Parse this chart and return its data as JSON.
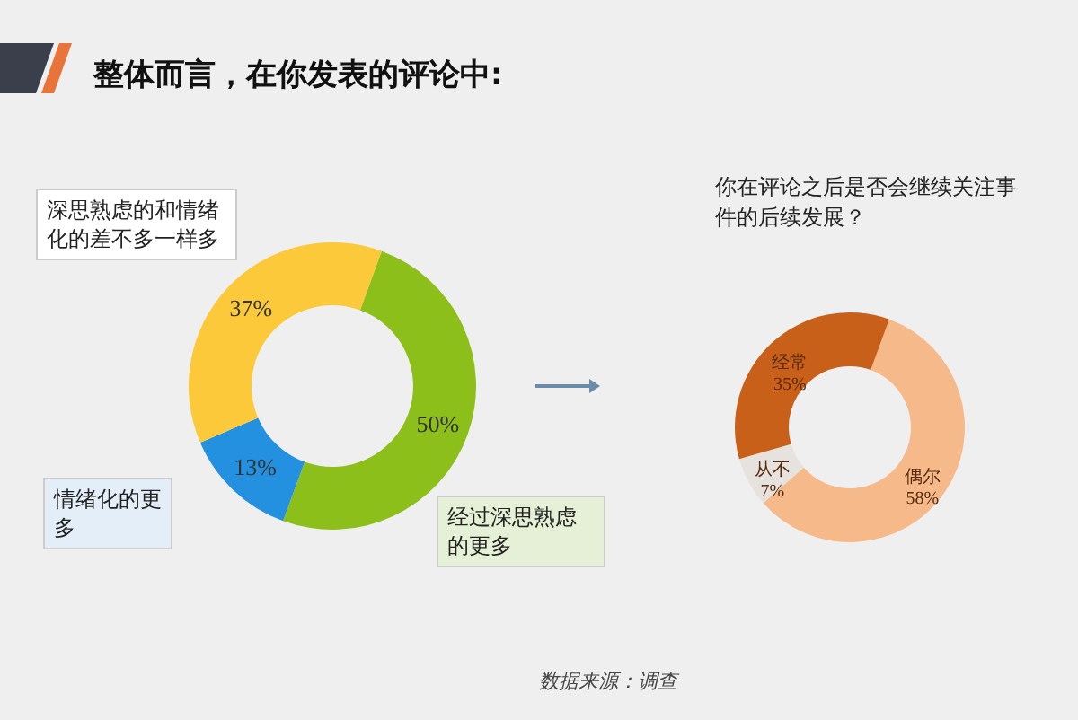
{
  "chart_data": [
    {
      "type": "donut",
      "title": "整体而言，在你发表的评论中:",
      "categories": [
        "经过深思熟虑的更多",
        "情绪化的更多",
        "深思熟虑的和情绪化的差不多一样多"
      ],
      "values": [
        50,
        13,
        37
      ],
      "value_labels": [
        "50%",
        "13%",
        "37%"
      ],
      "colors": [
        "#8cbf1a",
        "#2490e0",
        "#fcc93a"
      ]
    },
    {
      "type": "donut",
      "title": "你在评论之后是否会继续关注事件的后续发展？",
      "categories": [
        "偶尔",
        "从不",
        "经常"
      ],
      "values": [
        58,
        7,
        35
      ],
      "value_labels": [
        "58%",
        "7%",
        "35%"
      ],
      "colors": [
        "#f6b98a",
        "#e6e2de",
        "#c8601a"
      ],
      "annotations": [
        "数据来源：调查"
      ]
    }
  ]
}
